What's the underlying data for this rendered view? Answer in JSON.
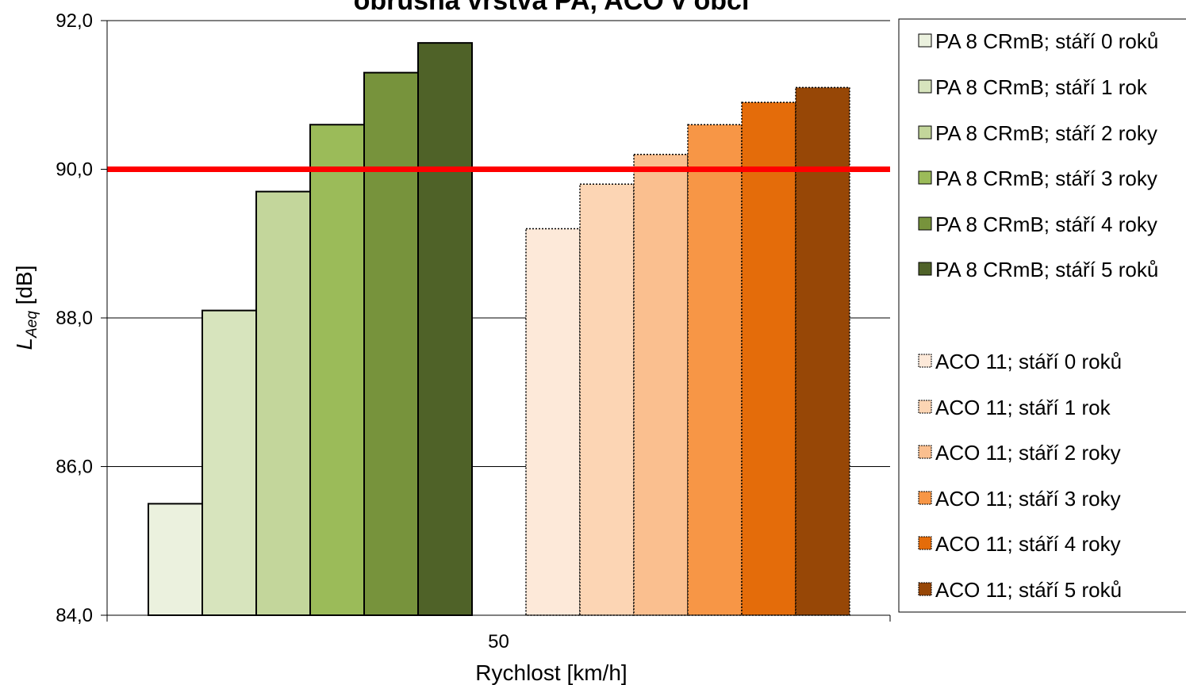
{
  "chart_data": {
    "type": "bar",
    "title": "obrusná vrstva PA, ACO v obci",
    "xlabel": "Rychlost  [km/h]",
    "ylabel_main": "L",
    "ylabel_sub": "Aeq",
    "ylabel_unit": " [dB]",
    "categories": [
      "50"
    ],
    "ylim": [
      84,
      92
    ],
    "yticks": [
      "84,0",
      "86,0",
      "88,0",
      "90,0",
      "92,0"
    ],
    "grid": true,
    "legend_position": "right",
    "reference_line": {
      "value": 90.0,
      "color": "#ff0000"
    },
    "series": [
      {
        "name": "PA 8 CRmB; stáří 0 roků",
        "values": [
          85.5
        ],
        "color": "#ebf1de",
        "border": "solid"
      },
      {
        "name": "PA 8 CRmB; stáří 1 rok",
        "values": [
          88.1
        ],
        "color": "#d7e4bd",
        "border": "solid"
      },
      {
        "name": "PA 8 CRmB; stáří 2 roky",
        "values": [
          89.7
        ],
        "color": "#c3d69b",
        "border": "solid"
      },
      {
        "name": "PA 8 CRmB; stáří 3 roky",
        "values": [
          90.6
        ],
        "color": "#9bbb59",
        "border": "solid"
      },
      {
        "name": "PA 8 CRmB; stáří 4 roky",
        "values": [
          91.3
        ],
        "color": "#77933c",
        "border": "solid"
      },
      {
        "name": "PA 8 CRmB; stáří 5 roků",
        "values": [
          91.7
        ],
        "color": "#4f6228",
        "border": "solid"
      },
      {
        "name": "ACO 11; stáří 0 roků",
        "values": [
          89.2
        ],
        "color": "#fde9d9",
        "border": "dotted"
      },
      {
        "name": "ACO 11; stáří 1 rok",
        "values": [
          89.8
        ],
        "color": "#fcd5b4",
        "border": "dotted"
      },
      {
        "name": "ACO 11; stáří 2 roky",
        "values": [
          90.2
        ],
        "color": "#fabf8f",
        "border": "dotted"
      },
      {
        "name": "ACO 11; stáří 3 roky",
        "values": [
          90.6
        ],
        "color": "#f79646",
        "border": "dotted"
      },
      {
        "name": "ACO 11; stáří 4 roky",
        "values": [
          90.9
        ],
        "color": "#e46c0a",
        "border": "dotted"
      },
      {
        "name": "ACO 11; stáří 5 roků",
        "values": [
          91.1
        ],
        "color": "#974706",
        "border": "dotted"
      }
    ]
  }
}
